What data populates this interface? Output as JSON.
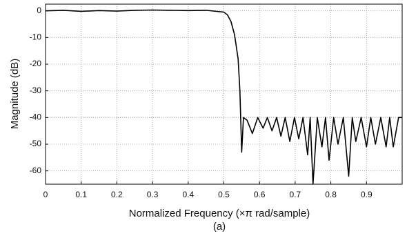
{
  "chart_data": {
    "type": "line",
    "ylabel": "Magnitude (dB)",
    "xlabel": "Normalized Frequency (×π rad/sample)",
    "caption": "(a)",
    "x": [
      0,
      0.05,
      0.1,
      0.15,
      0.2,
      0.25,
      0.3,
      0.35,
      0.4,
      0.45,
      0.5,
      0.51,
      0.52,
      0.53,
      0.54,
      0.545,
      0.55,
      0.555,
      0.565,
      0.58,
      0.595,
      0.61,
      0.622,
      0.635,
      0.648,
      0.66,
      0.672,
      0.685,
      0.698,
      0.71,
      0.722,
      0.735,
      0.742,
      0.75,
      0.762,
      0.775,
      0.785,
      0.795,
      0.808,
      0.82,
      0.835,
      0.85,
      0.86,
      0.87,
      0.885,
      0.9,
      0.912,
      0.925,
      0.94,
      0.955,
      0.965,
      0.975,
      0.99,
      1
    ],
    "values": [
      0,
      0.2,
      -0.2,
      0.1,
      -0.1,
      0.2,
      0.3,
      0.2,
      0.1,
      0.2,
      -0.5,
      -1.5,
      -4,
      -9,
      -18,
      -30,
      -53,
      -40,
      -41,
      -46,
      -40,
      -44,
      -40,
      -45,
      -40,
      -47,
      -40,
      -49,
      -40,
      -48,
      -40,
      -54,
      -40,
      -65,
      -40,
      -51,
      -40,
      -56,
      -40,
      -50,
      -40,
      -62,
      -40,
      -49,
      -40,
      -51,
      -40,
      -50,
      -40,
      -51,
      -40,
      -51,
      -40,
      -40
    ],
    "color": "#000000",
    "xlim": [
      0,
      1
    ],
    "ylim": [
      -65,
      2.5
    ],
    "xticks": [
      0,
      0.1,
      0.2,
      0.3,
      0.4,
      0.5,
      0.6,
      0.7,
      0.8,
      0.9
    ],
    "yticks": [
      0,
      -10,
      -20,
      -30,
      -40,
      -50,
      -60
    ],
    "grid": true
  }
}
